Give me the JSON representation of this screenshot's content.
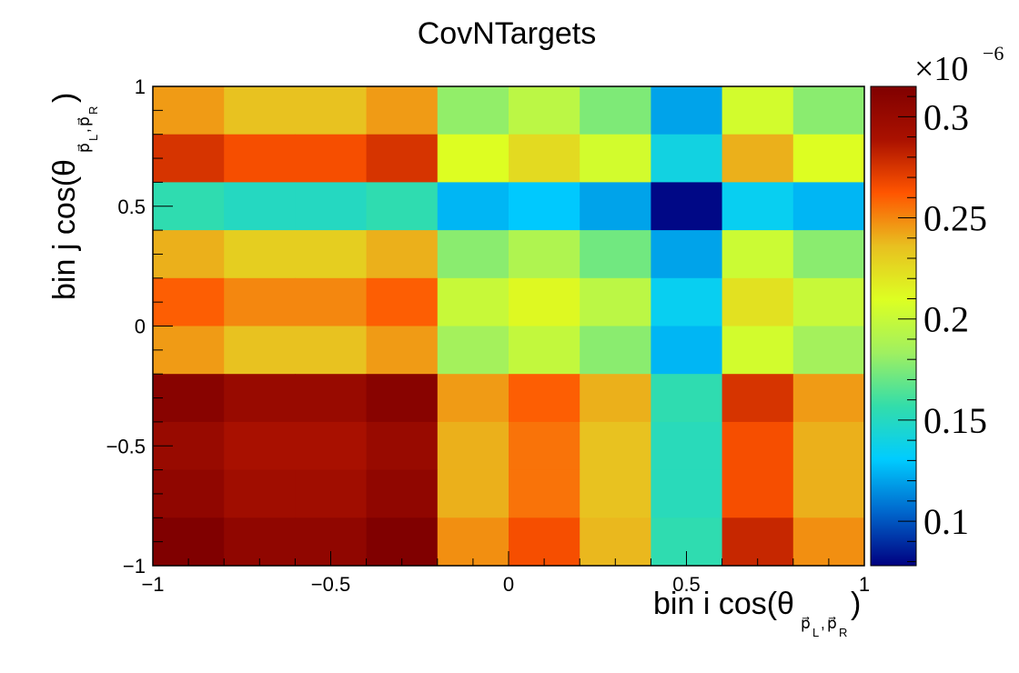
{
  "chart_data": {
    "type": "heatmap",
    "title": "CovNTargets",
    "x_edges": [
      -1,
      -0.8,
      -0.6,
      -0.4,
      -0.2,
      0,
      0.2,
      0.4,
      0.6,
      0.8,
      1
    ],
    "y_edges": [
      -1,
      -0.8,
      -0.6,
      -0.4,
      -0.2,
      0,
      0.2,
      0.4,
      0.6,
      0.8,
      1
    ],
    "xlim": [
      -1,
      1
    ],
    "ylim": [
      -1,
      1
    ],
    "x_ticks": [
      -1,
      -0.5,
      0,
      0.5,
      1
    ],
    "y_ticks": [
      -1,
      -0.5,
      0,
      0.5,
      1
    ],
    "x_tick_labels": [
      "−1",
      "−0.5",
      "0",
      "0.5",
      "1"
    ],
    "y_tick_labels": [
      "−1",
      "−0.5",
      "0",
      "0.5",
      "1"
    ],
    "xlabel": {
      "text": "bin i cos(θ",
      "vector_label": "p⃗",
      "sub1": "L",
      "sub2": "R",
      "close": ")"
    },
    "ylabel": {
      "text": "bin j cos(θ",
      "vector_label": "p⃗",
      "sub1": "L",
      "sub2": "R",
      "close": ")"
    },
    "z_values_rows_top_to_bottom": [
      [
        0.245,
        0.235,
        0.235,
        0.245,
        0.18,
        0.195,
        0.175,
        0.12,
        0.205,
        0.178
      ],
      [
        0.275,
        0.265,
        0.265,
        0.275,
        0.21,
        0.225,
        0.205,
        0.14,
        0.24,
        0.21
      ],
      [
        0.155,
        0.15,
        0.15,
        0.155,
        0.125,
        0.13,
        0.12,
        0.08,
        0.135,
        0.125
      ],
      [
        0.24,
        0.23,
        0.23,
        0.24,
        0.178,
        0.19,
        0.172,
        0.12,
        0.202,
        0.178
      ],
      [
        0.26,
        0.25,
        0.25,
        0.26,
        0.2,
        0.212,
        0.195,
        0.135,
        0.222,
        0.2
      ],
      [
        0.245,
        0.235,
        0.235,
        0.245,
        0.185,
        0.198,
        0.178,
        0.125,
        0.205,
        0.185
      ],
      [
        0.31,
        0.3,
        0.3,
        0.31,
        0.245,
        0.26,
        0.24,
        0.155,
        0.275,
        0.245
      ],
      [
        0.3,
        0.29,
        0.29,
        0.3,
        0.24,
        0.255,
        0.235,
        0.152,
        0.265,
        0.24
      ],
      [
        0.305,
        0.295,
        0.295,
        0.305,
        0.24,
        0.255,
        0.235,
        0.152,
        0.265,
        0.24
      ],
      [
        0.315,
        0.305,
        0.305,
        0.315,
        0.248,
        0.265,
        0.238,
        0.155,
        0.28,
        0.248
      ]
    ],
    "zlim": [
      0.078,
      0.315
    ],
    "colorbar": {
      "ticks": [
        0.1,
        0.15,
        0.2,
        0.25,
        0.3
      ],
      "tick_labels": [
        "0.1",
        "0.15",
        "0.2",
        "0.25",
        "0.3"
      ],
      "multiplier_base": "×10",
      "multiplier_exp": "−6",
      "stops": [
        "#000080",
        "#0066cc",
        "#00ccff",
        "#33ddaa",
        "#a0f060",
        "#ddff22",
        "#e8c020",
        "#ff5500",
        "#aa1100",
        "#800000"
      ]
    },
    "grid": false
  }
}
